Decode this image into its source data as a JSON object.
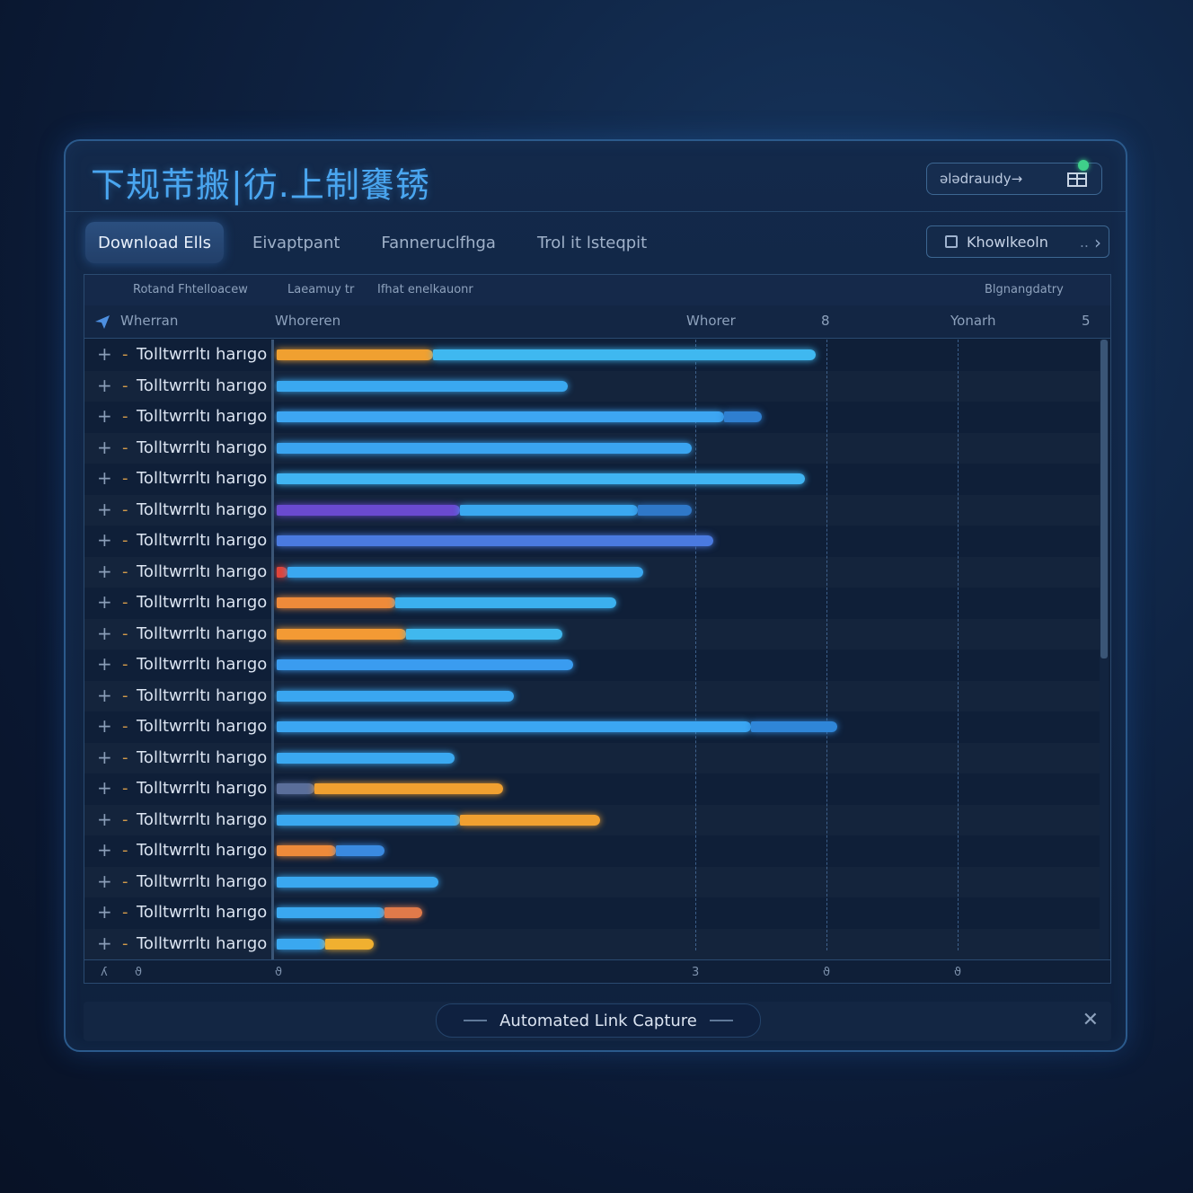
{
  "header": {
    "title": "下规芾搬|彷.上制饔锈",
    "action_label": "ələdrauıdy→"
  },
  "tabs": [
    {
      "label": "Download Ells",
      "active": true
    },
    {
      "label": "Eivaptpant",
      "active": false
    },
    {
      "label": "Fanneruclfhga",
      "active": false
    },
    {
      "label": "Trol it lsteqpit",
      "active": false
    }
  ],
  "tab_button": {
    "label": "Khowlkeoln",
    "more": "..",
    "chevron": "›"
  },
  "toolbar": {
    "left": "Rotand Fhtelloacew",
    "middle": "Laeamuy tr",
    "middle2": "Ifhat enelkauonr",
    "right": "Blgnangdatry"
  },
  "columns": [
    "Wherran",
    "Whoreren",
    "Whorer",
    "8",
    "Yonarh",
    "5"
  ],
  "rows": [
    {
      "label": "Tolltwrrltı harıgo",
      "segments": [
        {
          "from": 0,
          "to": 0.29,
          "color": "#f0a030"
        },
        {
          "from": 0.29,
          "to": 1.0,
          "color": "#3fb8f0"
        }
      ]
    },
    {
      "label": "Tolltwrrltı harıgo",
      "segments": [
        {
          "from": 0,
          "to": 0.54,
          "color": "#3aa8f0"
        }
      ]
    },
    {
      "label": "Tolltwrrltı harıgo",
      "segments": [
        {
          "from": 0,
          "to": 0.83,
          "color": "#3da6f2"
        },
        {
          "from": 0.83,
          "to": 0.9,
          "color": "#2f7fd0"
        }
      ]
    },
    {
      "label": "Tolltwrrltı harıgo",
      "segments": [
        {
          "from": 0,
          "to": 0.77,
          "color": "#3aa4f0"
        }
      ]
    },
    {
      "label": "Tolltwrrltı harıgo",
      "segments": [
        {
          "from": 0,
          "to": 0.98,
          "color": "#40b4f2"
        }
      ]
    },
    {
      "label": "Tolltwrrltı harıgo",
      "segments": [
        {
          "from": 0,
          "to": 0.34,
          "color": "#6a4ad0"
        },
        {
          "from": 0.34,
          "to": 0.67,
          "color": "#3aa8f0"
        },
        {
          "from": 0.67,
          "to": 0.77,
          "color": "#2f78c8"
        }
      ]
    },
    {
      "label": "Tolltwrrltı harıgo",
      "segments": [
        {
          "from": 0,
          "to": 0.81,
          "color": "#4a7ae0"
        }
      ]
    },
    {
      "label": "Tolltwrrltı harıgo",
      "segments": [
        {
          "from": 0,
          "to": 0.02,
          "color": "#e0443a"
        },
        {
          "from": 0.02,
          "to": 0.68,
          "color": "#3aa8f0"
        }
      ]
    },
    {
      "label": "Tolltwrrltı harıgo",
      "segments": [
        {
          "from": 0,
          "to": 0.22,
          "color": "#ee8a3a"
        },
        {
          "from": 0.22,
          "to": 0.63,
          "color": "#3bb0ee"
        }
      ]
    },
    {
      "label": "Tolltwrrltı harıgo",
      "segments": [
        {
          "from": 0,
          "to": 0.24,
          "color": "#f39a34"
        },
        {
          "from": 0.24,
          "to": 0.53,
          "color": "#40b8ee"
        }
      ]
    },
    {
      "label": "Tolltwrrltı harıgo",
      "segments": [
        {
          "from": 0,
          "to": 0.55,
          "color": "#3a9cf0"
        }
      ]
    },
    {
      "label": "Tolltwrrltı harıgo",
      "segments": [
        {
          "from": 0,
          "to": 0.44,
          "color": "#3aa6f0"
        }
      ]
    },
    {
      "label": "Tolltwrrltı harıgo",
      "segments": [
        {
          "from": 0,
          "to": 0.88,
          "color": "#3ba6f2"
        },
        {
          "from": 0.88,
          "to": 1.04,
          "color": "#2f86d8"
        }
      ]
    },
    {
      "label": "Tolltwrrltı harıgo",
      "segments": [
        {
          "from": 0,
          "to": 0.33,
          "color": "#3aa8f0"
        }
      ]
    },
    {
      "label": "Tolltwrrltı harıgo",
      "segments": [
        {
          "from": 0,
          "to": 0.07,
          "color": "#5a6e9a"
        },
        {
          "from": 0.07,
          "to": 0.42,
          "color": "#f0a030"
        }
      ]
    },
    {
      "label": "Tolltwrrltı harıgo",
      "segments": [
        {
          "from": 0,
          "to": 0.34,
          "color": "#3aa8f0"
        },
        {
          "from": 0.34,
          "to": 0.6,
          "color": "#f0a030"
        }
      ]
    },
    {
      "label": "Tolltwrrltı harıgo",
      "segments": [
        {
          "from": 0,
          "to": 0.11,
          "color": "#ee8a3a"
        },
        {
          "from": 0.11,
          "to": 0.2,
          "color": "#3a8ae0"
        }
      ]
    },
    {
      "label": "Tolltwrrltı harıgo",
      "segments": [
        {
          "from": 0,
          "to": 0.3,
          "color": "#3aa8f0"
        }
      ]
    },
    {
      "label": "Tolltwrrltı harıgo",
      "segments": [
        {
          "from": 0,
          "to": 0.2,
          "color": "#3aa8f0"
        },
        {
          "from": 0.2,
          "to": 0.27,
          "color": "#e07a4a"
        }
      ]
    },
    {
      "label": "Tolltwrrltı harıgo",
      "segments": [
        {
          "from": 0,
          "to": 0.09,
          "color": "#3aa8f0"
        },
        {
          "from": 0.09,
          "to": 0.18,
          "color": "#f0b030"
        }
      ]
    }
  ],
  "axis_ticks": [
    "ʎ",
    "ϑ",
    "ϑ",
    "3",
    "ϑ",
    "ϑ"
  ],
  "footer": {
    "label": "Automated Link Capture",
    "close": "✕"
  },
  "colors": {
    "accent": "#4aa6f0",
    "orange": "#f0a030",
    "cyan": "#3fb8f0",
    "panel": "#13294a"
  }
}
